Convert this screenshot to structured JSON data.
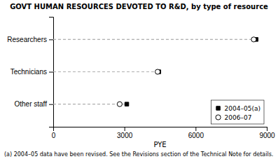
{
  "chart_data": {
    "type": "dot",
    "orientation": "horizontal",
    "title": "GOVT HUMAN RESOURCES DEVOTED TO R&D, by type of resource",
    "categories": [
      "Researchers",
      "Technicians",
      "Other staff"
    ],
    "series": [
      {
        "name": "2004–05(a)",
        "color": "#000000",
        "marker": "square",
        "values": [
          8550,
          4450,
          3100
        ]
      },
      {
        "name": "2006–07",
        "color": "#000000",
        "marker": "circle-open",
        "values": [
          8450,
          4400,
          2800
        ]
      }
    ],
    "xlabel": "PYE",
    "xlim": [
      0,
      9000
    ],
    "xticks": [
      0,
      3000,
      6000,
      9000
    ],
    "legend": "lower right",
    "grid": false,
    "annotations": [
      "(a) 2004–05 data have been revised.  See the Revisions section of the Technical Note for details."
    ]
  }
}
